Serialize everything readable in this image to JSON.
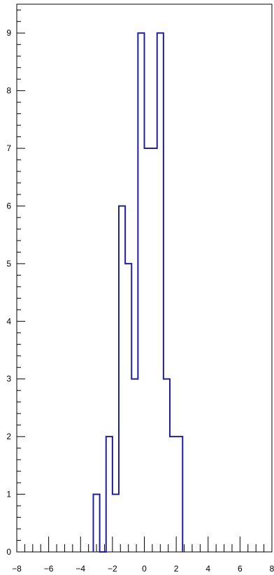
{
  "chart_data": {
    "type": "histogram",
    "title": "",
    "xlabel": "",
    "ylabel": "",
    "xlim": [
      -8,
      8
    ],
    "ylim": [
      0,
      9.5
    ],
    "grid": false,
    "legend": "none",
    "colors": {
      "line": "#1f1fa0",
      "axis": "#000000",
      "background": "#ffffff"
    },
    "x_ticks": [
      {
        "value": -8,
        "label": "−8"
      },
      {
        "value": -6,
        "label": "−6"
      },
      {
        "value": -4,
        "label": "−4"
      },
      {
        "value": -2,
        "label": "−2"
      },
      {
        "value": 0,
        "label": "0"
      },
      {
        "value": 2,
        "label": "2"
      },
      {
        "value": 4,
        "label": "4"
      },
      {
        "value": 6,
        "label": "6"
      },
      {
        "value": 8,
        "label": "8"
      }
    ],
    "y_ticks": [
      {
        "value": 0,
        "label": "0"
      },
      {
        "value": 1,
        "label": "1"
      },
      {
        "value": 2,
        "label": "2"
      },
      {
        "value": 3,
        "label": "3"
      },
      {
        "value": 4,
        "label": "4"
      },
      {
        "value": 5,
        "label": "5"
      },
      {
        "value": 6,
        "label": "6"
      },
      {
        "value": 7,
        "label": "7"
      },
      {
        "value": 8,
        "label": "8"
      },
      {
        "value": 9,
        "label": "9"
      }
    ],
    "bins": [
      {
        "x0": -3.2,
        "x1": -2.8,
        "count": 1
      },
      {
        "x0": -2.8,
        "x1": -2.4,
        "count": 0
      },
      {
        "x0": -2.4,
        "x1": -2.0,
        "count": 2
      },
      {
        "x0": -2.0,
        "x1": -1.6,
        "count": 1
      },
      {
        "x0": -1.6,
        "x1": -1.2,
        "count": 6
      },
      {
        "x0": -1.2,
        "x1": -0.8,
        "count": 5
      },
      {
        "x0": -0.8,
        "x1": -0.4,
        "count": 3
      },
      {
        "x0": -0.4,
        "x1": 0.0,
        "count": 9
      },
      {
        "x0": 0.0,
        "x1": 0.4,
        "count": 7
      },
      {
        "x0": 0.4,
        "x1": 0.8,
        "count": 7
      },
      {
        "x0": 0.8,
        "x1": 1.2,
        "count": 9
      },
      {
        "x0": 1.2,
        "x1": 1.6,
        "count": 3
      },
      {
        "x0": 1.6,
        "x1": 2.0,
        "count": 2
      },
      {
        "x0": 2.0,
        "x1": 2.4,
        "count": 2
      }
    ]
  }
}
